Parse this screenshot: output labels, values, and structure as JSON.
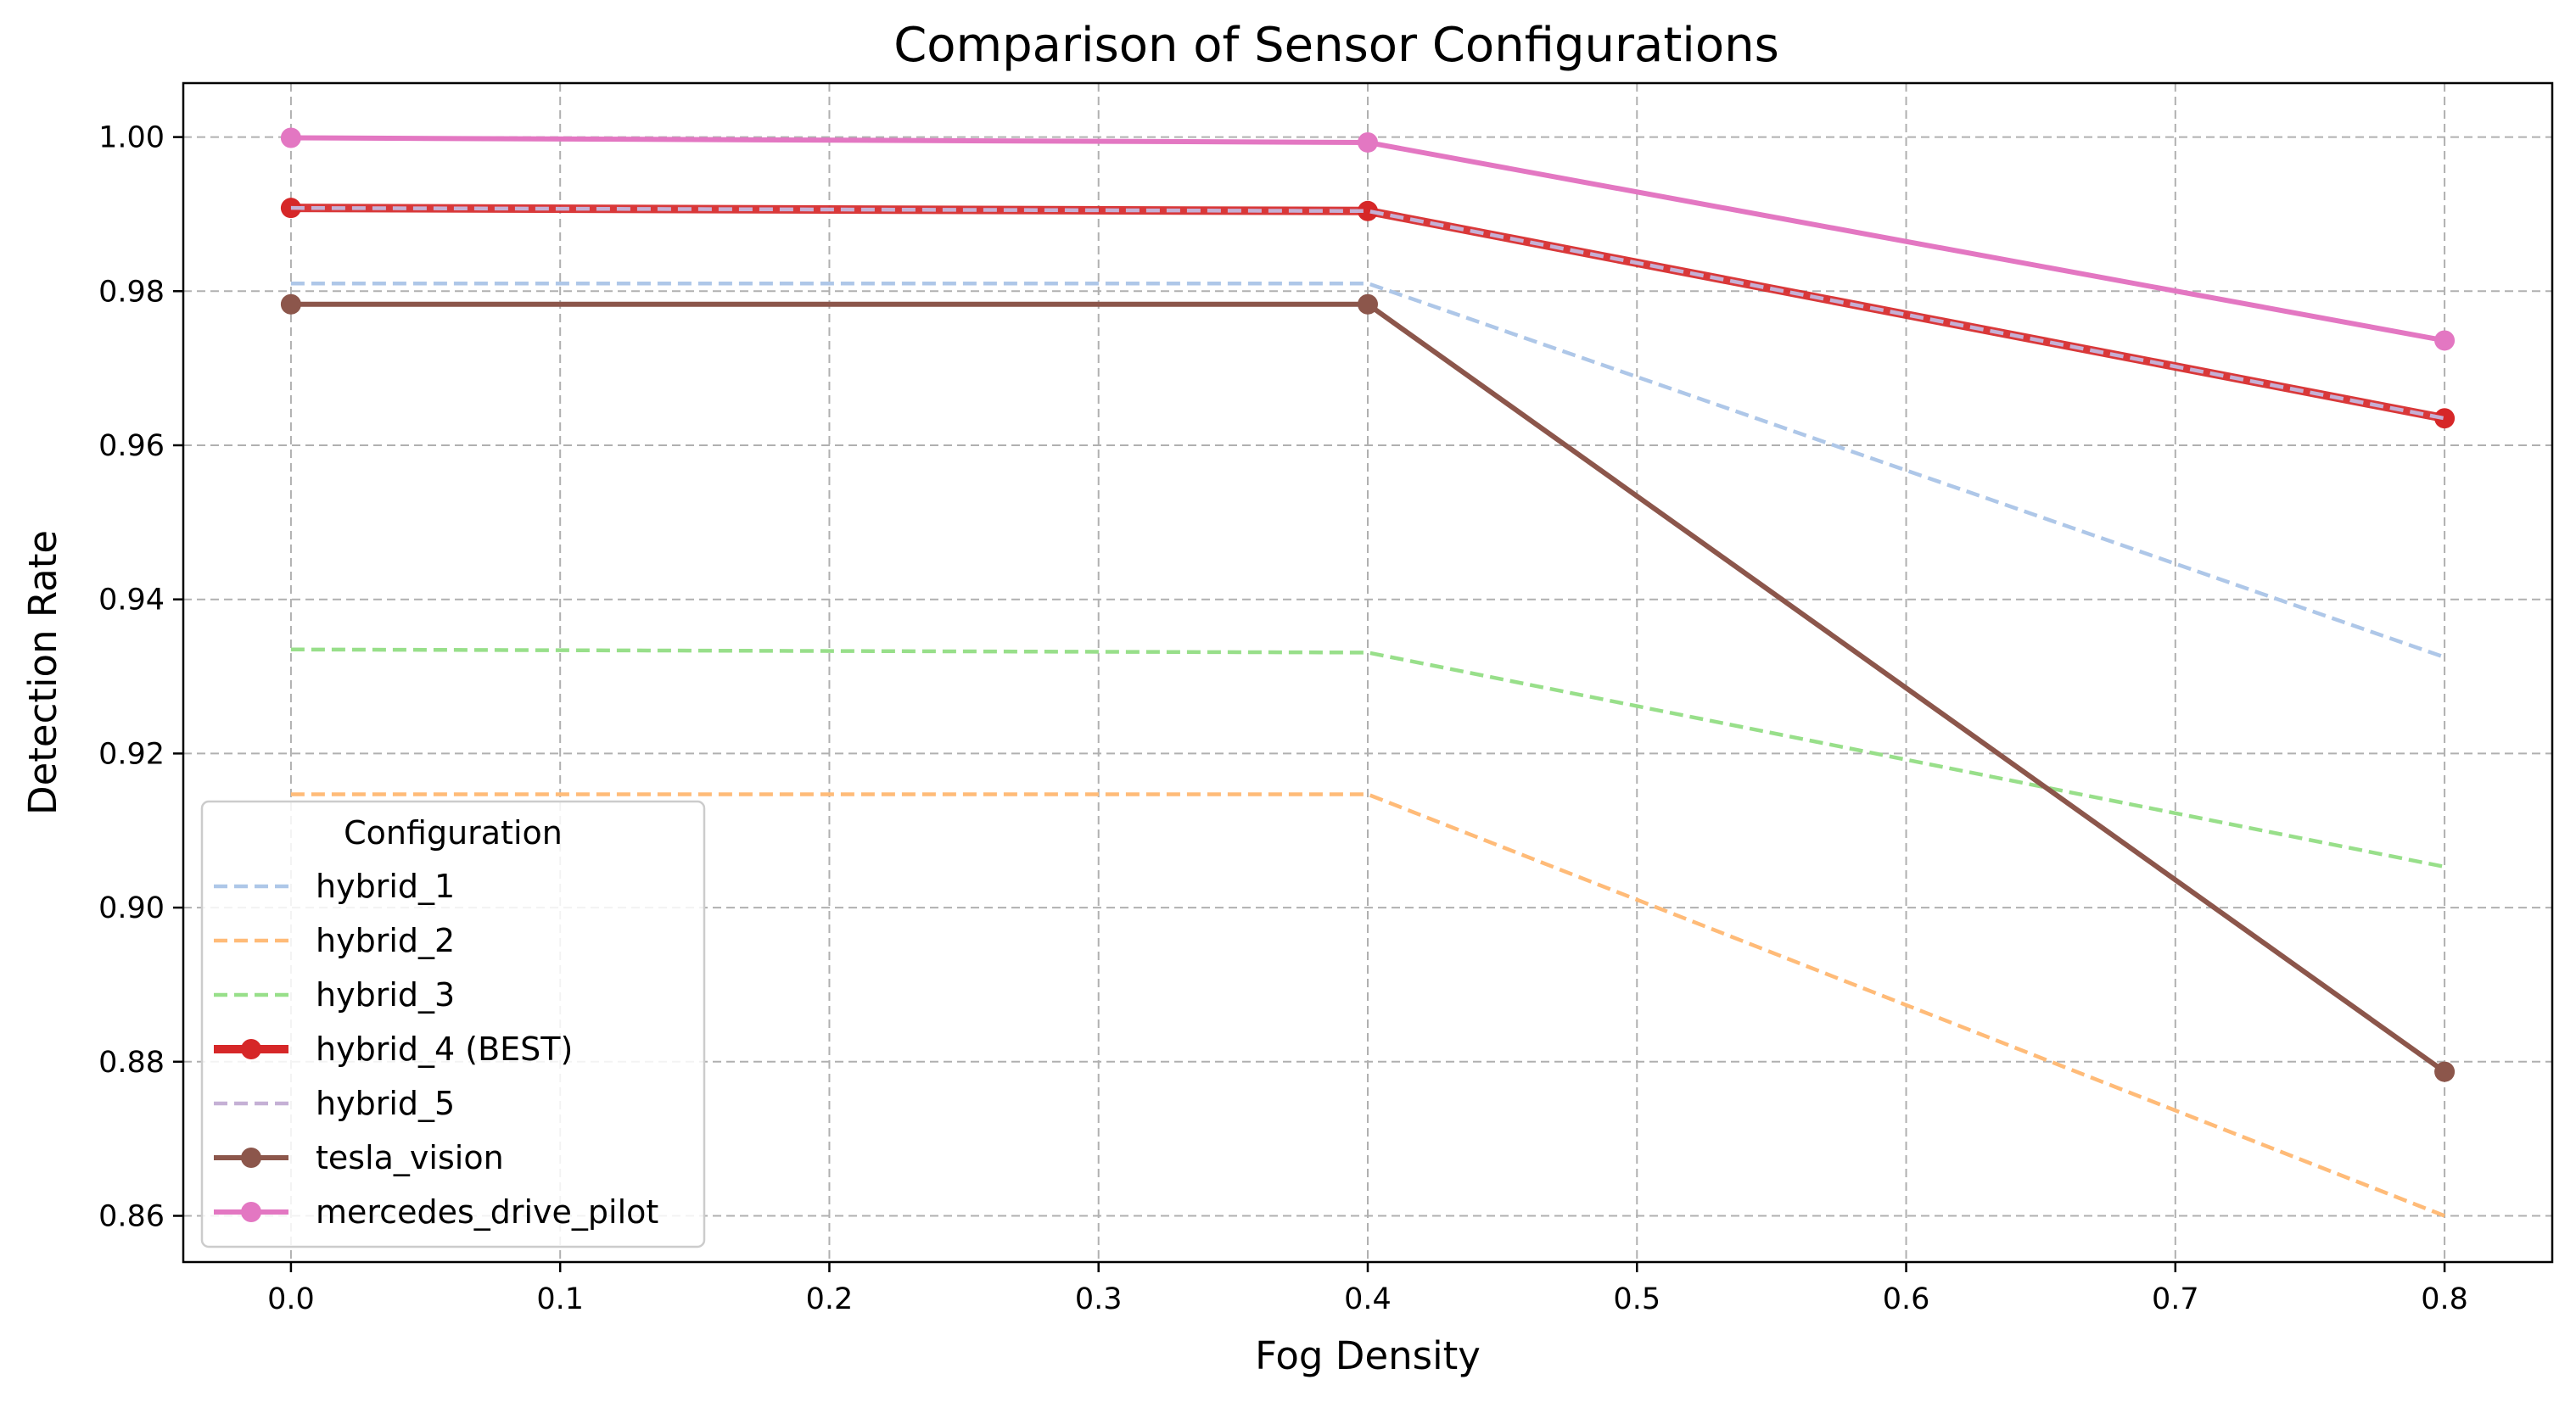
{
  "chart_data": {
    "type": "line",
    "title": "Comparison of Sensor Configurations",
    "xlabel": "Fog Density",
    "ylabel": "Detection Rate",
    "xlim": [
      -0.04,
      0.84
    ],
    "ylim": [
      0.854,
      1.007
    ],
    "xticks": [
      "0.0",
      "0.1",
      "0.2",
      "0.3",
      "0.4",
      "0.5",
      "0.6",
      "0.7",
      "0.8"
    ],
    "yticks": [
      "0.86",
      "0.88",
      "0.90",
      "0.92",
      "0.94",
      "0.96",
      "0.98",
      "1.00"
    ],
    "grid": true,
    "legend": {
      "title": "Configuration",
      "position": "lower-left"
    },
    "x": [
      0.0,
      0.4,
      0.8
    ],
    "series": [
      {
        "name": "hybrid_1",
        "values": [
          0.981,
          0.981,
          0.9325
        ],
        "color": "#aec7e8",
        "style": "dashed",
        "markers": false,
        "emphasis": false
      },
      {
        "name": "hybrid_2",
        "values": [
          0.9147,
          0.9147,
          0.86
        ],
        "color": "#ffbb78",
        "style": "dashed",
        "markers": false,
        "emphasis": false
      },
      {
        "name": "hybrid_3",
        "values": [
          0.9335,
          0.9331,
          0.9053
        ],
        "color": "#98df8a",
        "style": "dashed",
        "markers": false,
        "emphasis": false
      },
      {
        "name": "hybrid_4 (BEST)",
        "values": [
          0.9908,
          0.9904,
          0.9635
        ],
        "color": "#d62728",
        "style": "solid",
        "markers": true,
        "emphasis": true
      },
      {
        "name": "hybrid_5",
        "values": [
          0.9908,
          0.9904,
          0.9635
        ],
        "color": "#c5b0d5",
        "style": "dashed",
        "markers": false,
        "emphasis": false
      },
      {
        "name": "tesla_vision",
        "values": [
          0.9783,
          0.9783,
          0.8787
        ],
        "color": "#8c564b",
        "style": "solid",
        "markers": true,
        "emphasis": false
      },
      {
        "name": "mercedes_drive_pilot",
        "values": [
          0.9999,
          0.9993,
          0.9736
        ],
        "color": "#e377c2",
        "style": "solid",
        "markers": true,
        "emphasis": false
      }
    ]
  }
}
